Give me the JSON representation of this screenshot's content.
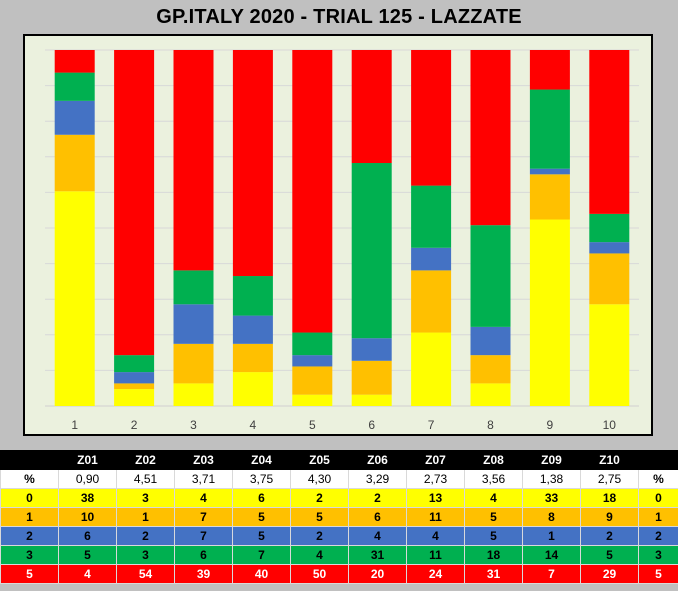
{
  "title": "GP.ITALY 2020 - TRIAL 125 - LAZZATE",
  "colors": {
    "0": "#ffff00",
    "1": "#ffc000",
    "2": "#4472c4",
    "3": "#00b050",
    "5": "#ff0000"
  },
  "chart_data": {
    "type": "bar",
    "stacked": "percent",
    "categories": [
      "1",
      "2",
      "3",
      "4",
      "5",
      "6",
      "7",
      "8",
      "9",
      "10"
    ],
    "series": [
      {
        "key": "0",
        "values": [
          38,
          3,
          4,
          6,
          2,
          2,
          13,
          4,
          33,
          18
        ]
      },
      {
        "key": "1",
        "values": [
          10,
          1,
          7,
          5,
          5,
          6,
          11,
          5,
          8,
          9
        ]
      },
      {
        "key": "2",
        "values": [
          6,
          2,
          7,
          5,
          2,
          4,
          4,
          5,
          1,
          2
        ]
      },
      {
        "key": "3",
        "values": [
          5,
          3,
          6,
          7,
          4,
          31,
          11,
          18,
          14,
          5
        ]
      },
      {
        "key": "5",
        "values": [
          4,
          54,
          39,
          40,
          50,
          20,
          24,
          31,
          7,
          29
        ]
      }
    ],
    "grid": true
  },
  "table": {
    "corner": "",
    "zones": [
      "Z01",
      "Z02",
      "Z03",
      "Z04",
      "Z05",
      "Z06",
      "Z07",
      "Z08",
      "Z09",
      "Z10"
    ],
    "pct_label": "%",
    "pct": [
      "0,90",
      "4,51",
      "3,71",
      "3,75",
      "4,30",
      "3,29",
      "2,73",
      "3,56",
      "1,38",
      "2,75"
    ],
    "rows": [
      {
        "label": "0",
        "values": [
          "38",
          "3",
          "4",
          "6",
          "2",
          "2",
          "13",
          "4",
          "33",
          "18"
        ]
      },
      {
        "label": "1",
        "values": [
          "10",
          "1",
          "7",
          "5",
          "5",
          "6",
          "11",
          "5",
          "8",
          "9"
        ]
      },
      {
        "label": "2",
        "values": [
          "6",
          "2",
          "7",
          "5",
          "2",
          "4",
          "4",
          "5",
          "1",
          "2"
        ]
      },
      {
        "label": "3",
        "values": [
          "5",
          "3",
          "6",
          "7",
          "4",
          "31",
          "11",
          "18",
          "14",
          "5"
        ]
      },
      {
        "label": "5",
        "values": [
          "4",
          "54",
          "39",
          "40",
          "50",
          "20",
          "24",
          "31",
          "7",
          "29"
        ]
      }
    ]
  }
}
